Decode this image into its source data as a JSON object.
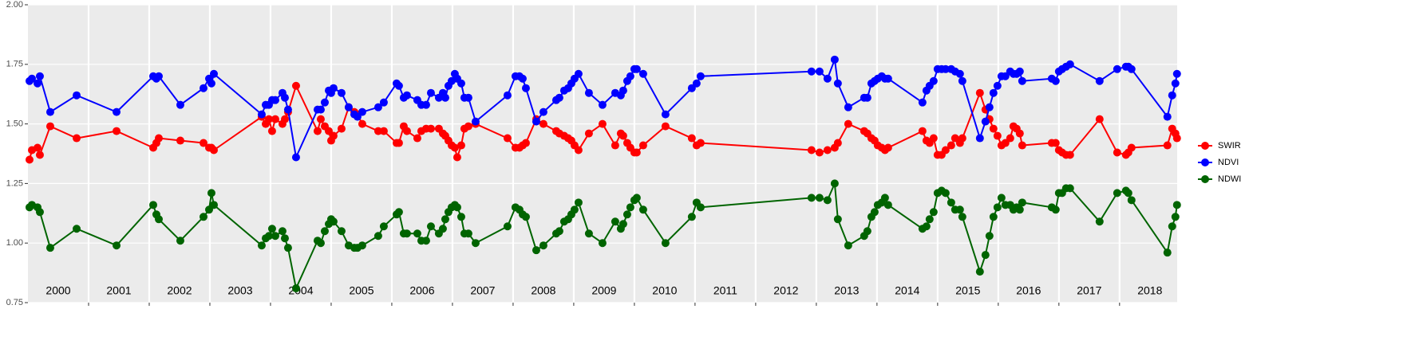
{
  "chart_data": {
    "type": "line",
    "x": [
      2000.026,
      2000.066,
      2000.158,
      2000.197,
      2000.368,
      2000.803,
      2001.461,
      2002.066,
      2002.118,
      2002.158,
      2002.513,
      2002.895,
      2002.987,
      2003.026,
      2003.066,
      2003.855,
      2003.921,
      2003.974,
      2004.026,
      2004.079,
      2004.197,
      2004.237,
      2004.289,
      2004.421,
      2004.776,
      2004.829,
      2004.895,
      2004.961,
      2005.0,
      2005.039,
      2005.171,
      2005.289,
      2005.382,
      2005.434,
      2005.513,
      2005.776,
      2005.868,
      2006.079,
      2006.118,
      2006.197,
      2006.25,
      2006.421,
      2006.487,
      2006.566,
      2006.645,
      2006.776,
      2006.842,
      2006.882,
      2006.934,
      2006.987,
      2007.039,
      2007.079,
      2007.145,
      2007.197,
      2007.263,
      2007.382,
      2007.908,
      2008.039,
      2008.105,
      2008.158,
      2008.211,
      2008.382,
      2008.5,
      2008.711,
      2008.763,
      2008.842,
      2008.908,
      2008.961,
      2009.013,
      2009.079,
      2009.25,
      2009.474,
      2009.684,
      2009.776,
      2009.816,
      2009.882,
      2009.934,
      2010.0,
      2010.039,
      2010.145,
      2010.513,
      2010.947,
      2011.026,
      2011.092,
      2012.921,
      2013.053,
      2013.184,
      2013.303,
      2013.355,
      2013.526,
      2013.789,
      2013.842,
      2013.908,
      2013.961,
      2014.013,
      2014.079,
      2014.132,
      2014.184,
      2014.75,
      2014.816,
      2014.868,
      2014.934,
      2015.0,
      2015.066,
      2015.132,
      2015.224,
      2015.289,
      2015.368,
      2015.408,
      2015.697,
      2015.789,
      2015.855,
      2015.921,
      2015.987,
      2016.053,
      2016.118,
      2016.197,
      2016.25,
      2016.303,
      2016.355,
      2016.395,
      2016.882,
      2016.947,
      2017.0,
      2017.053,
      2017.118,
      2017.184,
      2017.671,
      2017.961,
      2018.105,
      2018.145,
      2018.197,
      2018.789,
      2018.868,
      2018.921,
      2018.947
    ],
    "series": [
      {
        "name": "SWIR",
        "color": "#ff0000",
        "values": [
          1.35,
          1.39,
          1.4,
          1.37,
          1.49,
          1.44,
          1.47,
          1.4,
          1.42,
          1.44,
          1.43,
          1.42,
          1.4,
          1.4,
          1.39,
          1.53,
          1.5,
          1.52,
          1.47,
          1.52,
          1.5,
          1.52,
          1.55,
          1.66,
          1.47,
          1.52,
          1.49,
          1.47,
          1.43,
          1.45,
          1.48,
          1.57,
          1.55,
          1.54,
          1.5,
          1.47,
          1.47,
          1.42,
          1.42,
          1.49,
          1.47,
          1.44,
          1.47,
          1.48,
          1.48,
          1.48,
          1.46,
          1.45,
          1.43,
          1.41,
          1.4,
          1.36,
          1.41,
          1.48,
          1.49,
          1.5,
          1.44,
          1.4,
          1.4,
          1.41,
          1.42,
          1.52,
          1.5,
          1.47,
          1.46,
          1.45,
          1.44,
          1.43,
          1.41,
          1.39,
          1.46,
          1.5,
          1.41,
          1.46,
          1.45,
          1.42,
          1.4,
          1.38,
          1.38,
          1.41,
          1.49,
          1.44,
          1.41,
          1.42,
          1.39,
          1.38,
          1.39,
          1.4,
          1.42,
          1.5,
          1.47,
          1.46,
          1.44,
          1.43,
          1.41,
          1.4,
          1.39,
          1.4,
          1.47,
          1.43,
          1.42,
          1.44,
          1.37,
          1.37,
          1.39,
          1.41,
          1.44,
          1.42,
          1.44,
          1.63,
          1.56,
          1.52,
          1.48,
          1.45,
          1.41,
          1.42,
          1.44,
          1.49,
          1.48,
          1.46,
          1.41,
          1.42,
          1.42,
          1.39,
          1.38,
          1.37,
          1.37,
          1.52,
          1.38,
          1.37,
          1.38,
          1.4,
          1.41,
          1.48,
          1.46,
          1.44
        ]
      },
      {
        "name": "NDVI",
        "color": "#0000ff",
        "values": [
          1.68,
          1.69,
          1.67,
          1.7,
          1.55,
          1.62,
          1.55,
          1.7,
          1.69,
          1.7,
          1.58,
          1.65,
          1.69,
          1.67,
          1.71,
          1.54,
          1.58,
          1.58,
          1.6,
          1.6,
          1.63,
          1.61,
          1.56,
          1.36,
          1.56,
          1.56,
          1.59,
          1.64,
          1.63,
          1.65,
          1.63,
          1.57,
          1.54,
          1.53,
          1.55,
          1.57,
          1.59,
          1.67,
          1.66,
          1.61,
          1.62,
          1.6,
          1.58,
          1.58,
          1.63,
          1.61,
          1.63,
          1.61,
          1.66,
          1.68,
          1.71,
          1.69,
          1.67,
          1.61,
          1.61,
          1.51,
          1.62,
          1.7,
          1.7,
          1.69,
          1.65,
          1.51,
          1.55,
          1.6,
          1.61,
          1.64,
          1.65,
          1.67,
          1.69,
          1.71,
          1.63,
          1.58,
          1.63,
          1.62,
          1.64,
          1.68,
          1.7,
          1.73,
          1.73,
          1.71,
          1.54,
          1.65,
          1.67,
          1.7,
          1.72,
          1.72,
          1.69,
          1.77,
          1.67,
          1.57,
          1.61,
          1.61,
          1.67,
          1.68,
          1.69,
          1.7,
          1.69,
          1.69,
          1.59,
          1.64,
          1.66,
          1.68,
          1.73,
          1.73,
          1.73,
          1.73,
          1.72,
          1.71,
          1.68,
          1.44,
          1.51,
          1.57,
          1.63,
          1.66,
          1.7,
          1.7,
          1.72,
          1.71,
          1.71,
          1.72,
          1.68,
          1.69,
          1.68,
          1.72,
          1.73,
          1.74,
          1.75,
          1.68,
          1.73,
          1.74,
          1.74,
          1.73,
          1.53,
          1.62,
          1.67,
          1.71
        ]
      },
      {
        "name": "NDWI",
        "color": "#006400",
        "values": [
          1.15,
          1.16,
          1.15,
          1.13,
          0.98,
          1.06,
          0.99,
          1.16,
          1.12,
          1.1,
          1.01,
          1.11,
          1.14,
          1.21,
          1.16,
          0.99,
          1.02,
          1.03,
          1.06,
          1.03,
          1.05,
          1.02,
          0.98,
          0.81,
          1.01,
          1.0,
          1.05,
          1.08,
          1.1,
          1.09,
          1.05,
          0.99,
          0.98,
          0.98,
          0.99,
          1.03,
          1.07,
          1.12,
          1.13,
          1.04,
          1.04,
          1.04,
          1.01,
          1.01,
          1.07,
          1.04,
          1.06,
          1.1,
          1.13,
          1.15,
          1.16,
          1.15,
          1.11,
          1.04,
          1.04,
          1.0,
          1.07,
          1.15,
          1.14,
          1.12,
          1.11,
          0.97,
          0.99,
          1.04,
          1.05,
          1.09,
          1.1,
          1.12,
          1.14,
          1.17,
          1.04,
          1.0,
          1.09,
          1.06,
          1.08,
          1.12,
          1.15,
          1.18,
          1.19,
          1.14,
          1.0,
          1.11,
          1.17,
          1.15,
          1.19,
          1.19,
          1.18,
          1.25,
          1.1,
          0.99,
          1.03,
          1.05,
          1.11,
          1.13,
          1.16,
          1.17,
          1.19,
          1.16,
          1.06,
          1.07,
          1.1,
          1.13,
          1.21,
          1.22,
          1.21,
          1.17,
          1.14,
          1.14,
          1.11,
          0.88,
          0.95,
          1.03,
          1.11,
          1.15,
          1.19,
          1.16,
          1.16,
          1.14,
          1.15,
          1.14,
          1.17,
          1.15,
          1.14,
          1.21,
          1.21,
          1.23,
          1.23,
          1.09,
          1.21,
          1.22,
          1.21,
          1.18,
          0.96,
          1.07,
          1.11,
          1.16
        ]
      }
    ],
    "xlim": [
      2000,
      2018.95
    ],
    "xticks": [
      {
        "value": 2000.5,
        "label": "2000"
      },
      {
        "value": 2001.5,
        "label": "2001"
      },
      {
        "value": 2002.5,
        "label": "2002"
      },
      {
        "value": 2003.5,
        "label": "2003"
      },
      {
        "value": 2004.5,
        "label": "2004"
      },
      {
        "value": 2005.5,
        "label": "2005"
      },
      {
        "value": 2006.5,
        "label": "2006"
      },
      {
        "value": 2007.5,
        "label": "2007"
      },
      {
        "value": 2008.5,
        "label": "2008"
      },
      {
        "value": 2009.5,
        "label": "2009"
      },
      {
        "value": 2010.5,
        "label": "2010"
      },
      {
        "value": 2011.5,
        "label": "2011"
      },
      {
        "value": 2012.5,
        "label": "2012"
      },
      {
        "value": 2013.5,
        "label": "2013"
      },
      {
        "value": 2014.5,
        "label": "2014"
      },
      {
        "value": 2015.5,
        "label": "2015"
      },
      {
        "value": 2016.5,
        "label": "2016"
      },
      {
        "value": 2017.5,
        "label": "2017"
      },
      {
        "value": 2018.5,
        "label": "2018"
      }
    ],
    "ylim": [
      0.75,
      2.0
    ],
    "yticks": [
      {
        "value": 0.75,
        "label": "0.75"
      },
      {
        "value": 1.0,
        "label": "1.00"
      },
      {
        "value": 1.25,
        "label": "1.25"
      },
      {
        "value": 1.5,
        "label": "1.50"
      },
      {
        "value": 1.75,
        "label": "1.75"
      },
      {
        "value": 2.0,
        "label": "2.00"
      }
    ],
    "grid": true,
    "legend": "right"
  }
}
